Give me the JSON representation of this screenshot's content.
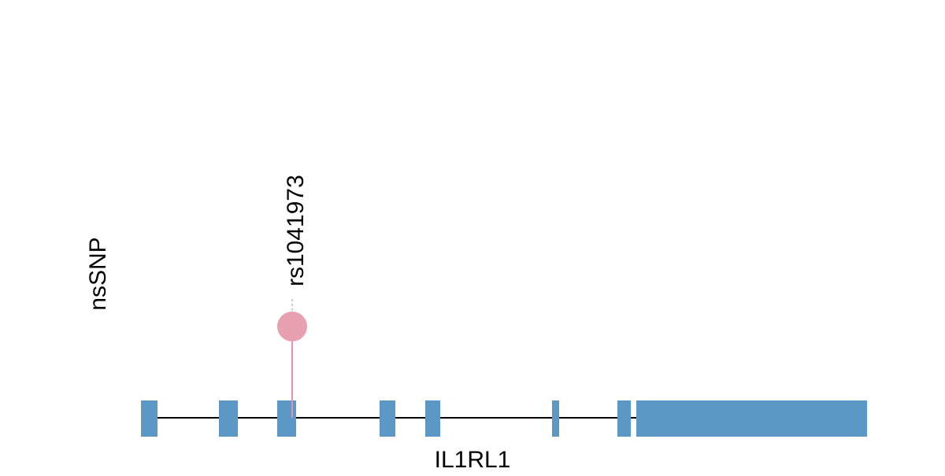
{
  "track_label": "nsSNP",
  "snp": {
    "label": "rs1041973"
  },
  "gene": {
    "name": "IL1RL1"
  }
}
